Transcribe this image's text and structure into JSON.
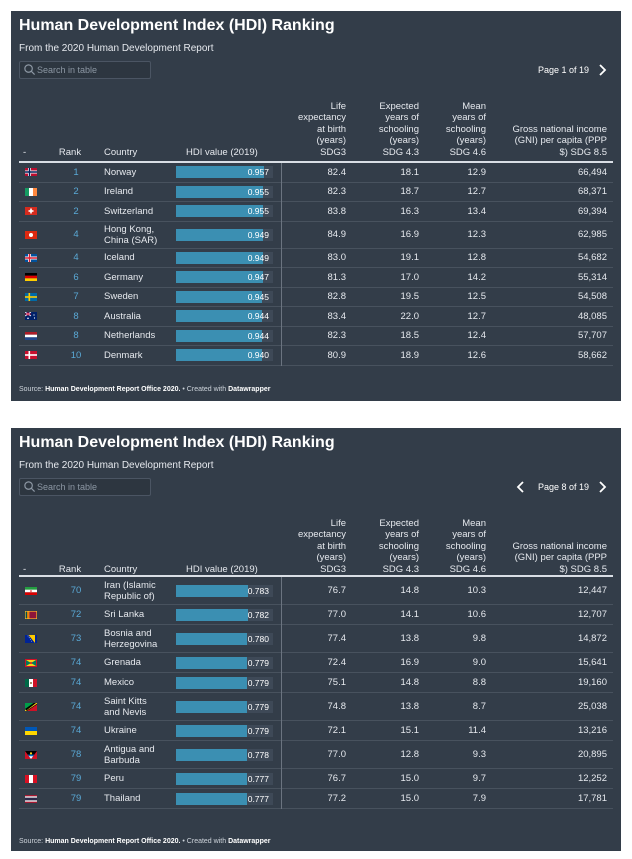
{
  "panels": [
    {
      "title": "Human Development Index (HDI) Ranking",
      "subtitle": "From the 2020 Human Development Report",
      "search_placeholder": "Search in table",
      "page_label": "Page 1 of 19",
      "show_prev": false,
      "headers": {
        "flag": "-",
        "rank": "Rank",
        "country": "Country",
        "hdi": "HDI value (2019)",
        "life": [
          "Life",
          "expectancy",
          "at birth",
          "(years)",
          "SDG3"
        ],
        "expected": [
          "Expected",
          "years of",
          "schooling",
          "(years)",
          "SDG 4.3"
        ],
        "mean": [
          "Mean",
          "years of",
          "schooling",
          "(years)",
          "SDG 4.6"
        ],
        "gni": [
          "Gross national income",
          "(GNI) per capita (PPP",
          "$) SDG 8.5"
        ]
      },
      "rows": [
        {
          "flag": "norway",
          "rank": "1",
          "country": [
            "Norway"
          ],
          "hdi": "0.957",
          "hdi_value": 0.957,
          "life": "82.4",
          "expected": "18.1",
          "mean": "12.9",
          "gni": "66,494"
        },
        {
          "flag": "ireland",
          "rank": "2",
          "country": [
            "Ireland"
          ],
          "hdi": "0.955",
          "hdi_value": 0.955,
          "life": "82.3",
          "expected": "18.7",
          "mean": "12.7",
          "gni": "68,371"
        },
        {
          "flag": "switzerland",
          "rank": "2",
          "country": [
            "Switzerland"
          ],
          "hdi": "0.955",
          "hdi_value": 0.955,
          "life": "83.8",
          "expected": "16.3",
          "mean": "13.4",
          "gni": "69,394"
        },
        {
          "flag": "hongkong",
          "rank": "4",
          "country": [
            "Hong Kong,",
            "China (SAR)"
          ],
          "hdi": "0.949",
          "hdi_value": 0.949,
          "life": "84.9",
          "expected": "16.9",
          "mean": "12.3",
          "gni": "62,985"
        },
        {
          "flag": "iceland",
          "rank": "4",
          "country": [
            "Iceland"
          ],
          "hdi": "0.949",
          "hdi_value": 0.949,
          "life": "83.0",
          "expected": "19.1",
          "mean": "12.8",
          "gni": "54,682"
        },
        {
          "flag": "germany",
          "rank": "6",
          "country": [
            "Germany"
          ],
          "hdi": "0.947",
          "hdi_value": 0.947,
          "life": "81.3",
          "expected": "17.0",
          "mean": "14.2",
          "gni": "55,314"
        },
        {
          "flag": "sweden",
          "rank": "7",
          "country": [
            "Sweden"
          ],
          "hdi": "0.945",
          "hdi_value": 0.945,
          "life": "82.8",
          "expected": "19.5",
          "mean": "12.5",
          "gni": "54,508"
        },
        {
          "flag": "australia",
          "rank": "8",
          "country": [
            "Australia"
          ],
          "hdi": "0.944",
          "hdi_value": 0.944,
          "life": "83.4",
          "expected": "22.0",
          "mean": "12.7",
          "gni": "48,085"
        },
        {
          "flag": "netherlands",
          "rank": "8",
          "country": [
            "Netherlands"
          ],
          "hdi": "0.944",
          "hdi_value": 0.944,
          "life": "82.3",
          "expected": "18.5",
          "mean": "12.4",
          "gni": "57,707"
        },
        {
          "flag": "denmark",
          "rank": "10",
          "country": [
            "Denmark"
          ],
          "hdi": "0.940",
          "hdi_value": 0.94,
          "life": "80.9",
          "expected": "18.9",
          "mean": "12.6",
          "gni": "58,662"
        }
      ],
      "source_prefix": "Source:",
      "source_name": "Human Development Report Office 2020.",
      "created_prefix": "• Created with",
      "created_name": "Datawrapper"
    },
    {
      "title": "Human Development Index (HDI) Ranking",
      "subtitle": "From the 2020 Human Development Report",
      "search_placeholder": "Search in table",
      "page_label": "Page 8 of 19",
      "show_prev": true,
      "headers": {
        "flag": "-",
        "rank": "Rank",
        "country": "Country",
        "hdi": "HDI value (2019)",
        "life": [
          "Life",
          "expectancy",
          "at birth",
          "(years)",
          "SDG3"
        ],
        "expected": [
          "Expected",
          "years of",
          "schooling",
          "(years)",
          "SDG 4.3"
        ],
        "mean": [
          "Mean",
          "years of",
          "schooling",
          "(years)",
          "SDG 4.6"
        ],
        "gni": [
          "Gross national income",
          "(GNI) per capita (PPP",
          "$) SDG 8.5"
        ]
      },
      "rows": [
        {
          "flag": "iran",
          "rank": "70",
          "country": [
            "Iran (Islamic",
            "Republic of)"
          ],
          "hdi": "0.783",
          "hdi_value": 0.783,
          "life": "76.7",
          "expected": "14.8",
          "mean": "10.3",
          "gni": "12,447"
        },
        {
          "flag": "srilanka",
          "rank": "72",
          "country": [
            "Sri Lanka"
          ],
          "hdi": "0.782",
          "hdi_value": 0.782,
          "life": "77.0",
          "expected": "14.1",
          "mean": "10.6",
          "gni": "12,707"
        },
        {
          "flag": "bosnia",
          "rank": "73",
          "country": [
            "Bosnia and",
            "Herzegovina"
          ],
          "hdi": "0.780",
          "hdi_value": 0.78,
          "life": "77.4",
          "expected": "13.8",
          "mean": "9.8",
          "gni": "14,872"
        },
        {
          "flag": "grenada",
          "rank": "74",
          "country": [
            "Grenada"
          ],
          "hdi": "0.779",
          "hdi_value": 0.779,
          "life": "72.4",
          "expected": "16.9",
          "mean": "9.0",
          "gni": "15,641"
        },
        {
          "flag": "mexico",
          "rank": "74",
          "country": [
            "Mexico"
          ],
          "hdi": "0.779",
          "hdi_value": 0.779,
          "life": "75.1",
          "expected": "14.8",
          "mean": "8.8",
          "gni": "19,160"
        },
        {
          "flag": "stkitts",
          "rank": "74",
          "country": [
            "Saint Kitts",
            "and Nevis"
          ],
          "hdi": "0.779",
          "hdi_value": 0.779,
          "life": "74.8",
          "expected": "13.8",
          "mean": "8.7",
          "gni": "25,038"
        },
        {
          "flag": "ukraine",
          "rank": "74",
          "country": [
            "Ukraine"
          ],
          "hdi": "0.779",
          "hdi_value": 0.779,
          "life": "72.1",
          "expected": "15.1",
          "mean": "11.4",
          "gni": "13,216"
        },
        {
          "flag": "antigua",
          "rank": "78",
          "country": [
            "Antigua and",
            "Barbuda"
          ],
          "hdi": "0.778",
          "hdi_value": 0.778,
          "life": "77.0",
          "expected": "12.8",
          "mean": "9.3",
          "gni": "20,895"
        },
        {
          "flag": "peru",
          "rank": "79",
          "country": [
            "Peru"
          ],
          "hdi": "0.777",
          "hdi_value": 0.777,
          "life": "76.7",
          "expected": "15.0",
          "mean": "9.7",
          "gni": "12,252"
        },
        {
          "flag": "thailand",
          "rank": "79",
          "country": [
            "Thailand"
          ],
          "hdi": "0.777",
          "hdi_value": 0.777,
          "life": "77.2",
          "expected": "15.0",
          "mean": "7.9",
          "gni": "17,781"
        }
      ],
      "source_prefix": "Source:",
      "source_name": "Human Development Report Office 2020.",
      "created_prefix": "• Created with",
      "created_name": "Datawrapper"
    }
  ]
}
